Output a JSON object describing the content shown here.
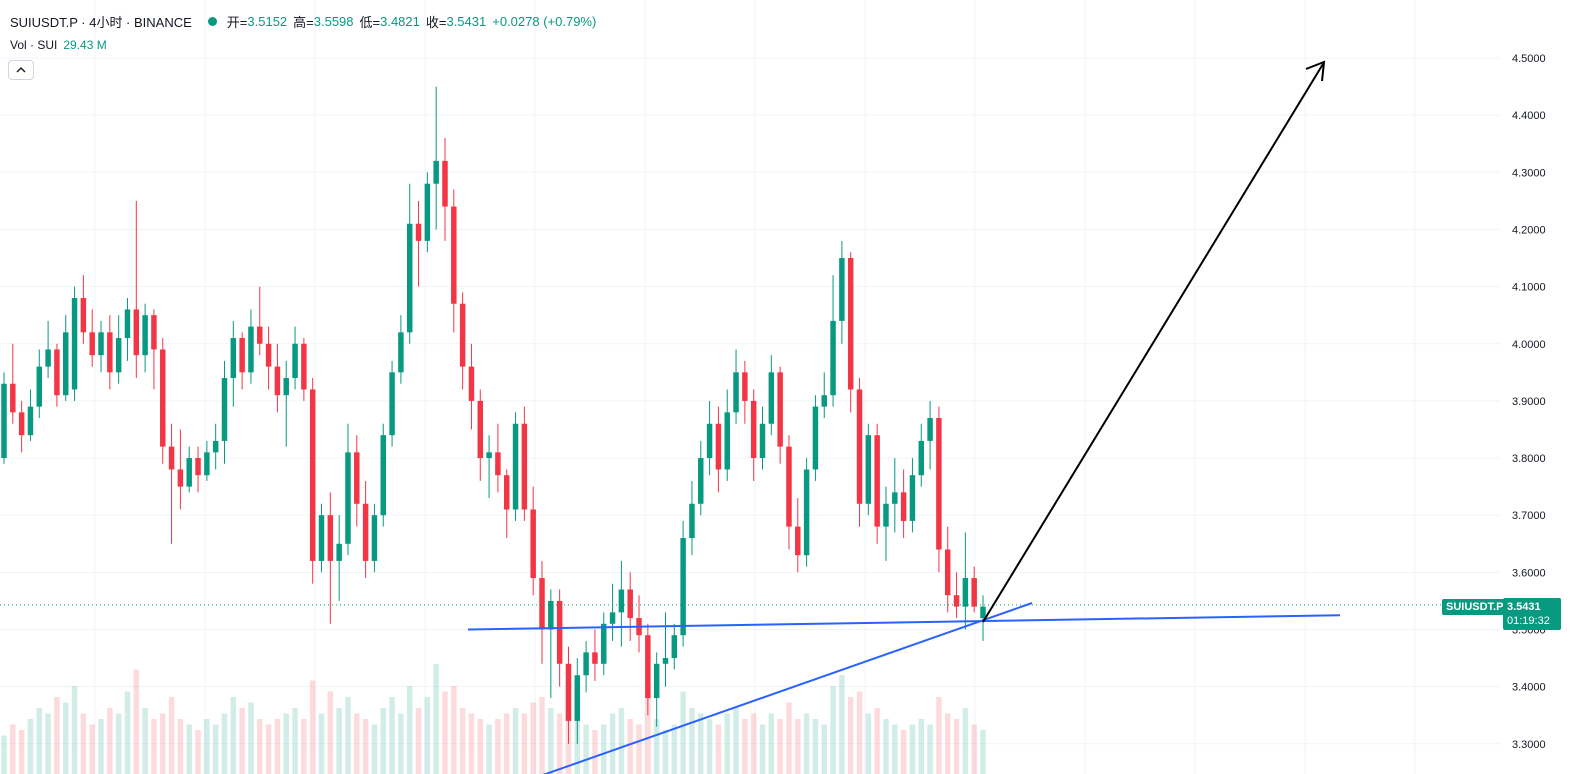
{
  "legend": {
    "symbol": "SUIUSDT.P · 4小时 · BINANCE",
    "open_label": "开=",
    "open_value": "3.5152",
    "high_label": "高=",
    "high_value": "3.5598",
    "low_label": "低=",
    "low_value": "3.4821",
    "close_label": "收=",
    "close_value": "3.5431",
    "change": "+0.0278 (+0.79%)"
  },
  "volume_legend": {
    "label": "Vol · SUI",
    "value": "29.43 M"
  },
  "collapse_icon": "chevron-up-icon",
  "price_scale": {
    "tag_symbol": "SUIUSDT.P",
    "last_price": "3.5431",
    "countdown": "01:19:32"
  },
  "colors": {
    "up": "#089981",
    "down": "#f23645",
    "trendline": "#2962ff",
    "arrow": "#000000",
    "grid": "#f0f3fa"
  },
  "chart_data": {
    "type": "candlestick",
    "symbol": "SUIUSDT.P",
    "interval": "4小时",
    "exchange": "BINANCE",
    "ylim": [
      3.28,
      4.58
    ],
    "y_ticks": [
      "4.5000",
      "4.4000",
      "4.3000",
      "4.2000",
      "4.1000",
      "4.0000",
      "3.9000",
      "3.8000",
      "3.7000",
      "3.6000",
      "3.5000",
      "3.4000",
      "3.3000"
    ],
    "grid": true,
    "last_price": 3.5431,
    "candles_ohlc": [
      [
        3.8,
        3.95,
        3.79,
        3.93
      ],
      [
        3.93,
        4.0,
        3.86,
        3.88
      ],
      [
        3.88,
        3.9,
        3.81,
        3.84
      ],
      [
        3.84,
        3.92,
        3.83,
        3.89
      ],
      [
        3.89,
        3.99,
        3.87,
        3.96
      ],
      [
        3.96,
        4.04,
        3.94,
        3.99
      ],
      [
        3.99,
        4.0,
        3.89,
        3.91
      ],
      [
        3.91,
        4.05,
        3.9,
        4.02
      ],
      [
        3.92,
        4.1,
        3.9,
        4.08
      ],
      [
        4.08,
        4.12,
        4.0,
        4.02
      ],
      [
        4.02,
        4.06,
        3.96,
        3.98
      ],
      [
        3.98,
        4.04,
        3.95,
        4.02
      ],
      [
        4.02,
        4.05,
        3.92,
        3.95
      ],
      [
        3.95,
        4.05,
        3.93,
        4.01
      ],
      [
        4.01,
        4.08,
        3.97,
        4.06
      ],
      [
        4.06,
        4.25,
        3.94,
        3.98
      ],
      [
        3.98,
        4.07,
        3.95,
        4.05
      ],
      [
        4.05,
        4.06,
        3.92,
        3.99
      ],
      [
        3.99,
        4.01,
        3.79,
        3.82
      ],
      [
        3.82,
        3.86,
        3.65,
        3.78
      ],
      [
        3.78,
        3.85,
        3.71,
        3.75
      ],
      [
        3.75,
        3.82,
        3.74,
        3.8
      ],
      [
        3.8,
        3.82,
        3.74,
        3.77
      ],
      [
        3.77,
        3.83,
        3.76,
        3.81
      ],
      [
        3.81,
        3.86,
        3.78,
        3.83
      ],
      [
        3.83,
        3.97,
        3.79,
        3.94
      ],
      [
        3.94,
        4.04,
        3.89,
        4.01
      ],
      [
        4.01,
        4.02,
        3.92,
        3.95
      ],
      [
        3.95,
        4.06,
        3.93,
        4.03
      ],
      [
        4.03,
        4.1,
        3.98,
        4.0
      ],
      [
        4.0,
        4.03,
        3.92,
        3.96
      ],
      [
        3.96,
        4.0,
        3.88,
        3.91
      ],
      [
        3.91,
        3.97,
        3.82,
        3.94
      ],
      [
        3.94,
        4.03,
        3.92,
        4.0
      ],
      [
        4.0,
        4.01,
        3.9,
        3.92
      ],
      [
        3.92,
        3.94,
        3.58,
        3.62
      ],
      [
        3.62,
        3.72,
        3.6,
        3.7
      ],
      [
        3.7,
        3.74,
        3.51,
        3.62
      ],
      [
        3.62,
        3.7,
        3.55,
        3.65
      ],
      [
        3.65,
        3.86,
        3.63,
        3.81
      ],
      [
        3.81,
        3.84,
        3.68,
        3.72
      ],
      [
        3.72,
        3.76,
        3.59,
        3.62
      ],
      [
        3.62,
        3.72,
        3.6,
        3.7
      ],
      [
        3.7,
        3.86,
        3.68,
        3.84
      ],
      [
        3.84,
        3.97,
        3.82,
        3.95
      ],
      [
        3.95,
        4.05,
        3.93,
        4.02
      ],
      [
        4.02,
        4.28,
        4.0,
        4.21
      ],
      [
        4.21,
        4.25,
        4.1,
        4.18
      ],
      [
        4.18,
        4.3,
        4.16,
        4.28
      ],
      [
        4.28,
        4.45,
        4.2,
        4.32
      ],
      [
        4.32,
        4.36,
        4.18,
        4.24
      ],
      [
        4.24,
        4.27,
        4.02,
        4.07
      ],
      [
        4.07,
        4.09,
        3.92,
        3.96
      ],
      [
        3.96,
        4.0,
        3.85,
        3.9
      ],
      [
        3.9,
        3.92,
        3.76,
        3.8
      ],
      [
        3.8,
        3.84,
        3.73,
        3.81
      ],
      [
        3.81,
        3.86,
        3.74,
        3.77
      ],
      [
        3.77,
        3.78,
        3.66,
        3.71
      ],
      [
        3.71,
        3.88,
        3.69,
        3.86
      ],
      [
        3.86,
        3.89,
        3.69,
        3.71
      ],
      [
        3.71,
        3.75,
        3.56,
        3.59
      ],
      [
        3.59,
        3.62,
        3.44,
        3.5
      ],
      [
        3.5,
        3.57,
        3.38,
        3.55
      ],
      [
        3.55,
        3.57,
        3.4,
        3.44
      ],
      [
        3.44,
        3.47,
        3.3,
        3.34
      ],
      [
        3.34,
        3.45,
        3.3,
        3.42
      ],
      [
        3.42,
        3.48,
        3.39,
        3.46
      ],
      [
        3.46,
        3.5,
        3.41,
        3.44
      ],
      [
        3.44,
        3.53,
        3.42,
        3.51
      ],
      [
        3.51,
        3.58,
        3.48,
        3.53
      ],
      [
        3.53,
        3.62,
        3.47,
        3.57
      ],
      [
        3.57,
        3.6,
        3.48,
        3.52
      ],
      [
        3.52,
        3.56,
        3.46,
        3.49
      ],
      [
        3.49,
        3.51,
        3.35,
        3.38
      ],
      [
        3.38,
        3.46,
        3.33,
        3.44
      ],
      [
        3.44,
        3.53,
        3.4,
        3.45
      ],
      [
        3.45,
        3.51,
        3.43,
        3.49
      ],
      [
        3.49,
        3.69,
        3.47,
        3.66
      ],
      [
        3.66,
        3.76,
        3.63,
        3.72
      ],
      [
        3.72,
        3.83,
        3.7,
        3.8
      ],
      [
        3.8,
        3.9,
        3.77,
        3.86
      ],
      [
        3.86,
        3.89,
        3.74,
        3.78
      ],
      [
        3.78,
        3.92,
        3.76,
        3.88
      ],
      [
        3.88,
        3.99,
        3.86,
        3.95
      ],
      [
        3.95,
        3.97,
        3.86,
        3.9
      ],
      [
        3.9,
        3.92,
        3.76,
        3.8
      ],
      [
        3.8,
        3.89,
        3.78,
        3.86
      ],
      [
        3.86,
        3.98,
        3.84,
        3.95
      ],
      [
        3.95,
        3.96,
        3.79,
        3.82
      ],
      [
        3.82,
        3.84,
        3.64,
        3.68
      ],
      [
        3.68,
        3.73,
        3.6,
        3.63
      ],
      [
        3.63,
        3.8,
        3.61,
        3.78
      ],
      [
        3.78,
        3.91,
        3.76,
        3.89
      ],
      [
        3.89,
        3.95,
        3.87,
        3.91
      ],
      [
        3.91,
        4.12,
        3.89,
        4.04
      ],
      [
        4.04,
        4.18,
        4.0,
        4.15
      ],
      [
        4.15,
        4.16,
        3.88,
        3.92
      ],
      [
        3.92,
        3.94,
        3.68,
        3.72
      ],
      [
        3.72,
        3.86,
        3.7,
        3.84
      ],
      [
        3.84,
        3.86,
        3.65,
        3.68
      ],
      [
        3.68,
        3.75,
        3.62,
        3.72
      ],
      [
        3.72,
        3.8,
        3.67,
        3.74
      ],
      [
        3.74,
        3.78,
        3.66,
        3.69
      ],
      [
        3.69,
        3.8,
        3.67,
        3.77
      ],
      [
        3.77,
        3.86,
        3.75,
        3.83
      ],
      [
        3.83,
        3.9,
        3.78,
        3.87
      ],
      [
        3.87,
        3.89,
        3.6,
        3.64
      ],
      [
        3.64,
        3.68,
        3.53,
        3.56
      ],
      [
        3.56,
        3.6,
        3.52,
        3.54
      ],
      [
        3.54,
        3.67,
        3.5,
        3.59
      ],
      [
        3.59,
        3.61,
        3.53,
        3.54
      ],
      [
        3.52,
        3.56,
        3.48,
        3.54
      ]
    ],
    "volume_series": {
      "name": "Vol · SUI",
      "values": [
        0.35,
        0.45,
        0.4,
        0.5,
        0.6,
        0.55,
        0.7,
        0.65,
        0.8,
        0.55,
        0.45,
        0.5,
        0.6,
        0.55,
        0.75,
        0.95,
        0.6,
        0.5,
        0.55,
        0.7,
        0.5,
        0.45,
        0.4,
        0.5,
        0.45,
        0.55,
        0.7,
        0.6,
        0.65,
        0.5,
        0.45,
        0.5,
        0.55,
        0.6,
        0.5,
        0.85,
        0.55,
        0.75,
        0.6,
        0.7,
        0.55,
        0.5,
        0.45,
        0.6,
        0.7,
        0.55,
        0.8,
        0.6,
        0.7,
        1.0,
        0.75,
        0.8,
        0.6,
        0.55,
        0.5,
        0.45,
        0.5,
        0.55,
        0.6,
        0.55,
        0.65,
        0.7,
        0.6,
        0.55,
        0.8,
        0.6,
        0.45,
        0.4,
        0.45,
        0.55,
        0.6,
        0.5,
        0.45,
        0.7,
        0.5,
        0.4,
        0.45,
        0.75,
        0.6,
        0.55,
        0.5,
        0.45,
        0.55,
        0.6,
        0.5,
        0.55,
        0.45,
        0.55,
        0.5,
        0.65,
        0.5,
        0.55,
        0.5,
        0.45,
        0.8,
        0.9,
        0.7,
        0.75,
        0.55,
        0.6,
        0.5,
        0.45,
        0.4,
        0.45,
        0.5,
        0.45,
        0.7,
        0.55,
        0.5,
        0.6,
        0.45,
        0.4
      ]
    },
    "annotations": [
      {
        "type": "trendline",
        "color": "#2962ff",
        "from": [
          3.5,
          "left"
        ],
        "to": [
          3.52,
          "right"
        ]
      },
      {
        "type": "trendline",
        "color": "#2962ff",
        "from": [
          3.28,
          "bottom"
        ],
        "to": [
          3.56,
          "rising"
        ]
      },
      {
        "type": "arrow",
        "color": "#000000",
        "from": 3.52,
        "to": 4.49
      }
    ]
  }
}
